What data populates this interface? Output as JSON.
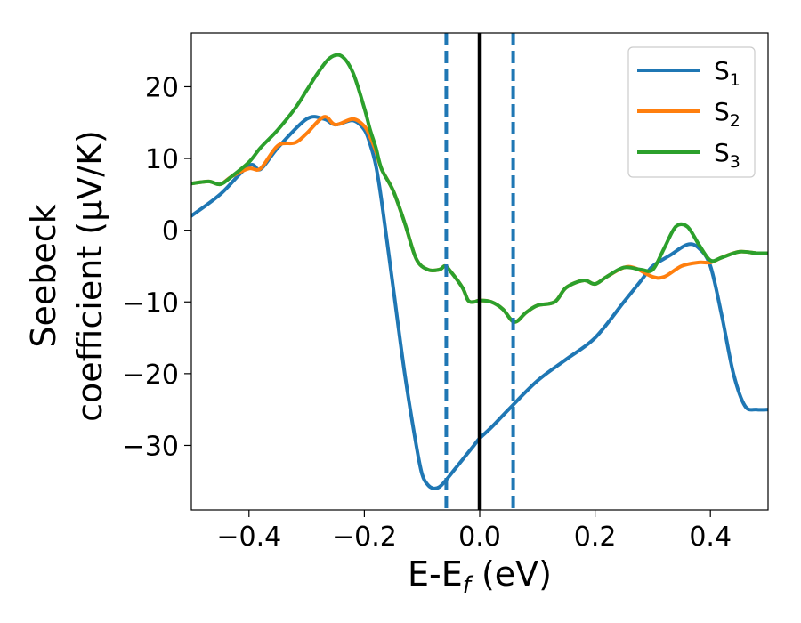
{
  "chart_data": {
    "type": "line",
    "xlabel": {
      "main": "E-E",
      "sub": "f",
      "unit": " (eV)"
    },
    "ylabel": {
      "line1": "Seebeck",
      "line2": "coefficient  (μV/K)"
    },
    "xlim": [
      -0.5,
      0.5
    ],
    "ylim": [
      -39,
      27.5
    ],
    "xticks": [
      -0.4,
      -0.2,
      0.0,
      0.2,
      0.4
    ],
    "xtick_labels": [
      "−0.4",
      "−0.2",
      "0.0",
      "0.2",
      "0.4"
    ],
    "yticks": [
      -30,
      -20,
      -10,
      0,
      10,
      20
    ],
    "ytick_labels": [
      "−30",
      "−20",
      "−10",
      "0",
      "10",
      "20"
    ],
    "grid": false,
    "legend_position": "top-right",
    "vlines": [
      {
        "x": -0.058,
        "style": "dashed",
        "color": "#1f77b4"
      },
      {
        "x": 0.0,
        "style": "solid",
        "color": "#000000"
      },
      {
        "x": 0.058,
        "style": "dashed",
        "color": "#1f77b4"
      }
    ],
    "series": [
      {
        "name": "S",
        "sub": "1",
        "color": "#1f77b4",
        "x": [
          -0.5,
          -0.45,
          -0.4,
          -0.38,
          -0.35,
          -0.3,
          -0.27,
          -0.25,
          -0.22,
          -0.2,
          -0.19,
          -0.18,
          -0.17,
          -0.15,
          -0.13,
          -0.11,
          -0.1,
          -0.09,
          -0.08,
          -0.07,
          -0.06,
          -0.05,
          -0.03,
          -0.01,
          0.0,
          0.02,
          0.05,
          0.1,
          0.15,
          0.2,
          0.25,
          0.28,
          0.3,
          0.33,
          0.36,
          0.38,
          0.4,
          0.42,
          0.44,
          0.46,
          0.48,
          0.5
        ],
        "y": [
          2,
          5,
          9,
          8.5,
          11.5,
          15.5,
          15.5,
          14.7,
          15.3,
          14,
          12,
          9,
          4,
          -8,
          -20,
          -30,
          -34,
          -35.5,
          -36,
          -35.8,
          -35,
          -34,
          -32,
          -30,
          -29,
          -27.5,
          -25,
          -21,
          -18,
          -15,
          -10,
          -7,
          -5,
          -3.5,
          -2,
          -2.5,
          -5,
          -12,
          -20,
          -24.5,
          -25,
          -25
        ]
      },
      {
        "name": "S",
        "sub": "2",
        "color": "#ff7f0e",
        "x": [
          -0.5,
          -0.47,
          -0.45,
          -0.43,
          -0.4,
          -0.38,
          -0.35,
          -0.32,
          -0.3,
          -0.27,
          -0.25,
          -0.22,
          -0.2,
          -0.19,
          -0.18,
          -0.17,
          -0.15,
          -0.13,
          -0.11,
          -0.09,
          -0.07,
          -0.06,
          -0.05,
          -0.03,
          -0.02,
          -0.01,
          0.0,
          0.02,
          0.04,
          0.06,
          0.08,
          0.1,
          0.13,
          0.15,
          0.18,
          0.2,
          0.22,
          0.25,
          0.27,
          0.3,
          0.32,
          0.35,
          0.38,
          0.4,
          0.42,
          0.45,
          0.48,
          0.5
        ],
        "y": [
          6.5,
          6.8,
          6.4,
          7.5,
          8.6,
          8.6,
          11.8,
          12.2,
          13.5,
          15.8,
          14.7,
          15.5,
          14.5,
          13,
          11,
          8.5,
          5.5,
          1,
          -4,
          -5.5,
          -5.5,
          -5,
          -5.8,
          -8,
          -9.8,
          -10,
          -9.8,
          -10,
          -11,
          -12.8,
          -11.5,
          -10.5,
          -10,
          -8,
          -7,
          -7.5,
          -6.5,
          -5.2,
          -5.3,
          -6.5,
          -6.5,
          -5,
          -4.5,
          -4.5,
          -3.8,
          -3,
          -3.2,
          -3.2
        ]
      },
      {
        "name": "S",
        "sub": "3",
        "color": "#2ca02c",
        "x": [
          -0.5,
          -0.47,
          -0.45,
          -0.43,
          -0.4,
          -0.38,
          -0.35,
          -0.32,
          -0.3,
          -0.28,
          -0.26,
          -0.24,
          -0.22,
          -0.2,
          -0.19,
          -0.18,
          -0.17,
          -0.15,
          -0.13,
          -0.11,
          -0.09,
          -0.07,
          -0.06,
          -0.05,
          -0.03,
          -0.02,
          -0.01,
          0.0,
          0.02,
          0.04,
          0.06,
          0.08,
          0.1,
          0.13,
          0.15,
          0.18,
          0.2,
          0.22,
          0.25,
          0.28,
          0.3,
          0.32,
          0.34,
          0.36,
          0.38,
          0.4,
          0.42,
          0.45,
          0.48,
          0.5
        ],
        "y": [
          6.5,
          6.8,
          6.4,
          7.5,
          9.5,
          11.5,
          14,
          17,
          19.5,
          22,
          24,
          24.3,
          22,
          17,
          14,
          11.5,
          8.5,
          5.5,
          1,
          -4,
          -5.5,
          -5.5,
          -5,
          -5.8,
          -8,
          -9.8,
          -10,
          -9.8,
          -10,
          -11,
          -12.8,
          -11.5,
          -10.5,
          -10,
          -8,
          -7,
          -7.5,
          -6.5,
          -5.2,
          -5.5,
          -5.5,
          -2.5,
          0.5,
          0.5,
          -2,
          -4.2,
          -3.8,
          -3,
          -3.2,
          -3.2
        ]
      }
    ]
  }
}
